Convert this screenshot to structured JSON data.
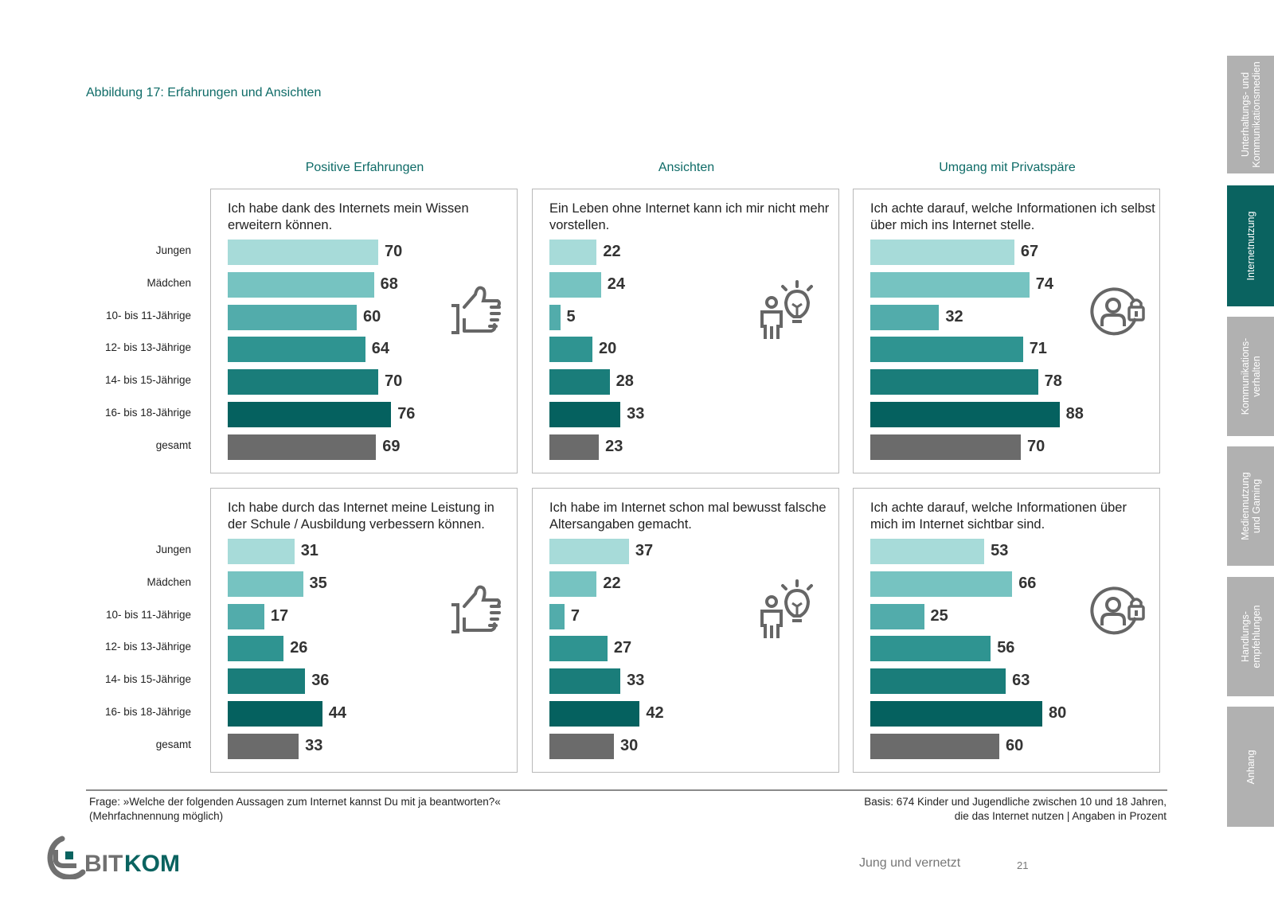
{
  "figure_title": "Abbildung 17: Erfahrungen und Ansichten",
  "column_headers": [
    "Positive Erfahrungen",
    "Ansichten",
    "Umgang mit Privatspäre"
  ],
  "colors": {
    "accent": "#0e6b67",
    "series": [
      "#a7dbd9",
      "#76c3c1",
      "#52acab",
      "#2f9491",
      "#1a7d7a",
      "#05615f",
      "#6b6b6b"
    ],
    "icon": "#666666",
    "tab_inactive": "#b1b1b1",
    "tab_active": "#0a6360"
  },
  "row_labels": [
    "Jungen",
    "Mädchen",
    "10- bis 11-Jährige",
    "12- bis 13-Jährige",
    "14- bis 15-Jährige",
    "16- bis 18-Jährige",
    "gesamt"
  ],
  "chart_data": [
    {
      "type": "bar",
      "orientation": "horizontal",
      "group": "Positive Erfahrungen",
      "title": "Ich habe dank des Internets mein Wissen erweitern können.",
      "categories": [
        "Jungen",
        "Mädchen",
        "10- bis 11-Jährige",
        "12- bis 13-Jährige",
        "14- bis 15-Jährige",
        "16- bis 18-Jährige",
        "gesamt"
      ],
      "values": [
        70,
        68,
        60,
        64,
        70,
        76,
        69
      ],
      "unit": "%",
      "icon": "thumbs-up-icon",
      "xlim": [
        0,
        100
      ]
    },
    {
      "type": "bar",
      "orientation": "horizontal",
      "group": "Ansichten",
      "title": "Ein Leben ohne Internet kann ich mir nicht mehr vorstellen.",
      "categories": [
        "Jungen",
        "Mädchen",
        "10- bis 11-Jährige",
        "12- bis 13-Jährige",
        "14- bis 15-Jährige",
        "16- bis 18-Jährige",
        "gesamt"
      ],
      "values": [
        22,
        24,
        5,
        20,
        28,
        33,
        23
      ],
      "unit": "%",
      "icon": "person-idea-icon",
      "xlim": [
        0,
        100
      ]
    },
    {
      "type": "bar",
      "orientation": "horizontal",
      "group": "Umgang mit Privatspäre",
      "title": "Ich achte darauf, welche Informationen ich selbst über mich ins Internet stelle.",
      "categories": [
        "Jungen",
        "Mädchen",
        "10- bis 11-Jährige",
        "12- bis 13-Jährige",
        "14- bis 15-Jährige",
        "16- bis 18-Jährige",
        "gesamt"
      ],
      "values": [
        67,
        74,
        32,
        71,
        78,
        88,
        70
      ],
      "unit": "%",
      "icon": "privacy-lock-icon",
      "xlim": [
        0,
        100
      ]
    },
    {
      "type": "bar",
      "orientation": "horizontal",
      "group": "Positive Erfahrungen",
      "title": "Ich habe durch das Internet meine Leistung in der Schule / Ausbildung verbessern können.",
      "categories": [
        "Jungen",
        "Mädchen",
        "10- bis 11-Jährige",
        "12- bis 13-Jährige",
        "14- bis 15-Jährige",
        "16- bis 18-Jährige",
        "gesamt"
      ],
      "values": [
        31,
        35,
        17,
        26,
        36,
        44,
        33
      ],
      "unit": "%",
      "icon": "thumbs-up-icon",
      "xlim": [
        0,
        100
      ]
    },
    {
      "type": "bar",
      "orientation": "horizontal",
      "group": "Ansichten",
      "title": "Ich habe im Internet schon mal bewusst falsche Altersangaben gemacht.",
      "categories": [
        "Jungen",
        "Mädchen",
        "10- bis 11-Jährige",
        "12- bis 13-Jährige",
        "14- bis 15-Jährige",
        "16- bis 18-Jährige",
        "gesamt"
      ],
      "values": [
        37,
        22,
        7,
        27,
        33,
        42,
        30
      ],
      "unit": "%",
      "icon": "person-idea-icon",
      "xlim": [
        0,
        100
      ]
    },
    {
      "type": "bar",
      "orientation": "horizontal",
      "group": "Umgang mit Privatspäre",
      "title": "Ich achte darauf, welche Informationen über mich im Internet sichtbar sind.",
      "categories": [
        "Jungen",
        "Mädchen",
        "10- bis 11-Jährige",
        "12- bis 13-Jährige",
        "14- bis 15-Jährige",
        "16- bis 18-Jährige",
        "gesamt"
      ],
      "values": [
        53,
        66,
        25,
        56,
        63,
        80,
        60
      ],
      "unit": "%",
      "icon": "privacy-lock-icon",
      "xlim": [
        0,
        100
      ]
    }
  ],
  "footnote_left": {
    "line1": "Frage: »Welche der folgenden Aussagen zum Internet kannst Du mit ja beantworten?«",
    "line2": "(Mehrfachnennung möglich)"
  },
  "footnote_right": {
    "line1": "Basis: 674 Kinder und Jugendliche zwischen 10 und 18 Jahren,",
    "line2": "die das Internet nutzen  | Angaben in Prozent"
  },
  "side_tabs": [
    {
      "label": "Unterhaltungs- und\nKommunikationsmedien",
      "active": false
    },
    {
      "label": "Internetnutzung",
      "active": true
    },
    {
      "label": "Kommunikations-\nverhalten",
      "active": false
    },
    {
      "label": "Mediennutzung\nund Gaming",
      "active": false
    },
    {
      "label": "Handlungs-\nempfehlungen",
      "active": false
    },
    {
      "label": "Anhang",
      "active": false
    }
  ],
  "logo": {
    "part1": "BIT",
    "part2": "KOM"
  },
  "page_footer": {
    "publication": "Jung und vernetzt",
    "page_number": "21"
  }
}
